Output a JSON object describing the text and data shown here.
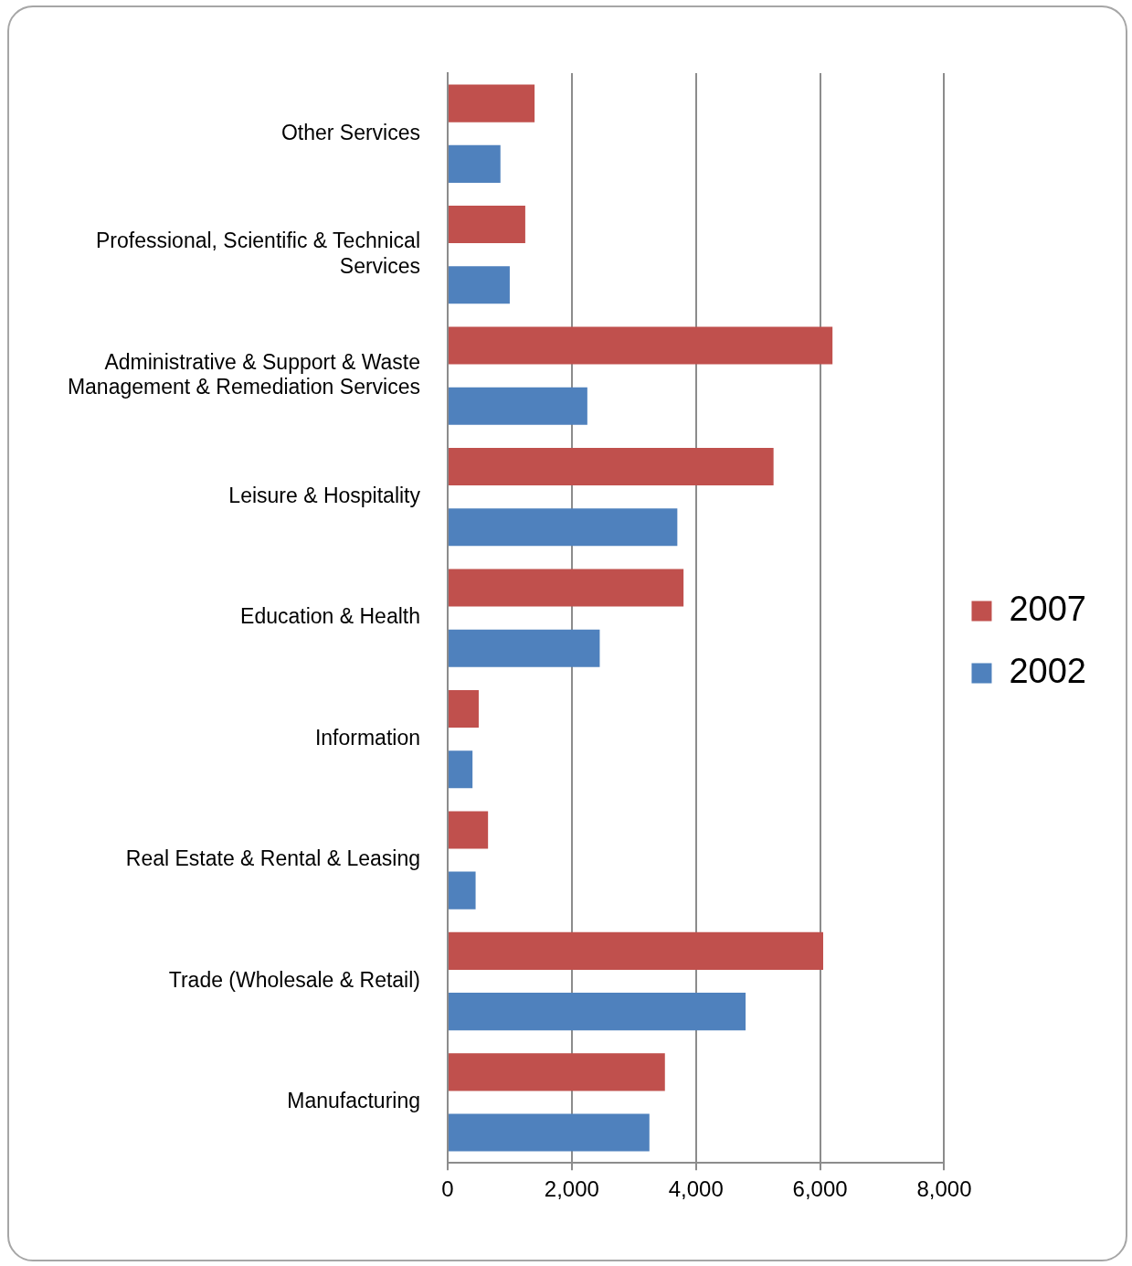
{
  "chart_data": {
    "type": "bar",
    "orientation": "horizontal",
    "categories": [
      "Other Services",
      "Professional, Scientific & Technical Services",
      "Administrative & Support & Waste Management & Remediation Services",
      "Leisure & Hospitality",
      "Education & Health",
      "Information",
      "Real Estate & Rental & Leasing",
      "Trade (Wholesale & Retail)",
      "Manufacturing"
    ],
    "series": [
      {
        "name": "2007",
        "color": "#c0504d",
        "values": [
          1400,
          1250,
          6200,
          5250,
          3800,
          500,
          650,
          6050,
          3500
        ]
      },
      {
        "name": "2002",
        "color": "#4f81bd",
        "values": [
          850,
          1000,
          2250,
          3700,
          2450,
          400,
          450,
          4800,
          3250
        ]
      }
    ],
    "xlim": [
      0,
      8000
    ],
    "xticks": [
      {
        "value": 0,
        "label": "0"
      },
      {
        "value": 2000,
        "label": "2,000"
      },
      {
        "value": 4000,
        "label": "4,000"
      },
      {
        "value": 6000,
        "label": "6,000"
      },
      {
        "value": 8000,
        "label": "8,000"
      }
    ],
    "grid": "x",
    "legend": "right"
  }
}
